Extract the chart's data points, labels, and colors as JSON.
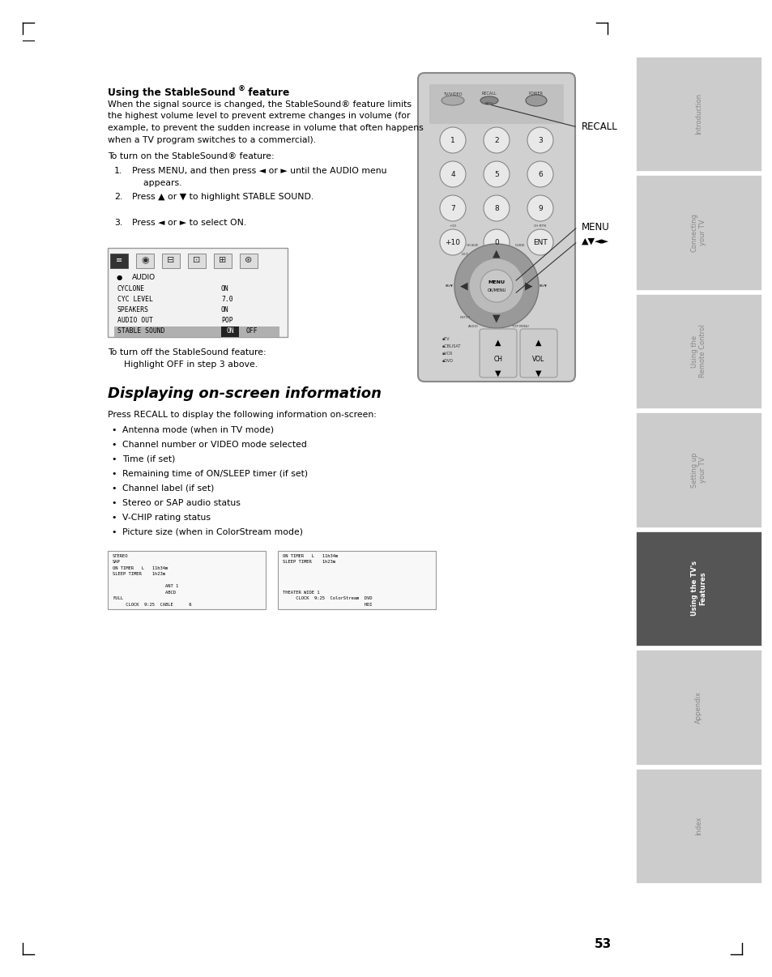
{
  "page_bg": "#ffffff",
  "page_width": 9.54,
  "page_height": 12.06,
  "dpi": 100,
  "sidebar_tabs": [
    {
      "label": "Introduction",
      "active": false,
      "color": "#cccccc"
    },
    {
      "label": "Connecting\nyour TV",
      "active": false,
      "color": "#cccccc"
    },
    {
      "label": "Using the\nRemote Control",
      "active": false,
      "color": "#cccccc"
    },
    {
      "label": "Setting up\nyour TV",
      "active": false,
      "color": "#cccccc"
    },
    {
      "label": "Using the TV's\nFeatures",
      "active": true,
      "color": "#555555"
    },
    {
      "label": "Appendix",
      "active": false,
      "color": "#cccccc"
    },
    {
      "label": "Index",
      "active": false,
      "color": "#cccccc"
    }
  ],
  "title1": "Using the StableSound",
  "title1_super": "®",
  "title1_rest": " feature",
  "body1_lines": [
    "When the signal source is changed, the StableSound® feature limits",
    "the highest volume level to prevent extreme changes in volume (for",
    "example, to prevent the sudden increase in volume that often happens",
    "when a TV program switches to a commercial)."
  ],
  "body2": "To turn on the StableSound® feature:",
  "steps": [
    "Press MENU, and then press ◄ or ► until the AUDIO menu",
    "Press ▲ or ▼ to highlight STABLE SOUND.",
    "Press ◄ or ► to select ON."
  ],
  "step1_cont": "    appears.",
  "turnoff_line1": "To turn off the StableSound feature:",
  "turnoff_line2": "    Highlight OFF in step 3 above.",
  "title2": "Displaying on-screen information",
  "recall_intro": "Press RECALL to display the following information on-screen:",
  "bullets": [
    "Antenna mode (when in TV mode)",
    "Channel number or VIDEO mode selected",
    "Time (if set)",
    "Remaining time of ON/SLEEP timer (if set)",
    "Channel label (if set)",
    "Stereo or SAP audio status",
    "V-CHIP rating status",
    "Picture size (when in ColorStream mode)"
  ],
  "screen1_lines": [
    [
      "STEREO",
      0.0
    ],
    [
      "SAP",
      0.0
    ],
    [
      "ON TIMER   L   11h34m",
      0.0
    ],
    [
      "SLEEP TIMER    1h23m",
      0.0
    ],
    [
      "",
      0.0
    ],
    [
      "                    ANT 1",
      0.0
    ],
    [
      "                    ABCD",
      0.0
    ],
    [
      "FULL",
      0.0
    ],
    [
      "     CLOCK  9:25  CABLE      6",
      0.0
    ]
  ],
  "screen2_lines": [
    [
      "ON TIMER   L   11h34m",
      0.0
    ],
    [
      "SLEEP TIMER    1h23m",
      0.0
    ],
    [
      "",
      0.0
    ],
    [
      "",
      0.0
    ],
    [
      "",
      0.0
    ],
    [
      "",
      0.0
    ],
    [
      "THEATER WIDE 1",
      0.0
    ],
    [
      "     CLOCK  9:25  ColorStream  DVD",
      0.0
    ],
    [
      "                               HDI",
      0.0
    ]
  ],
  "page_number": "53",
  "recall_label": "RECALL",
  "menu_label": "MENU",
  "arrow_label": "▲▼◄►"
}
